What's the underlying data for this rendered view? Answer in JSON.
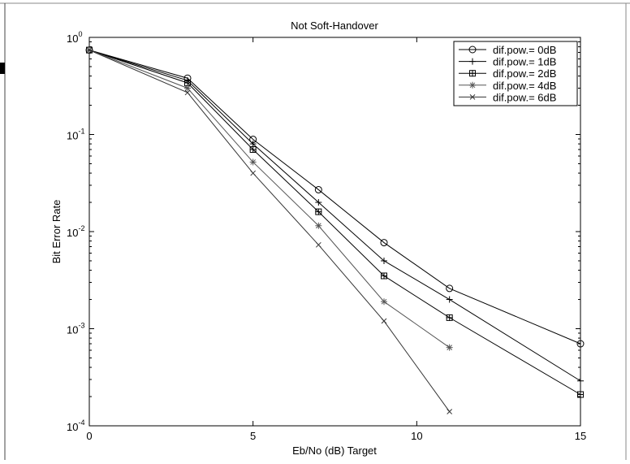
{
  "chart_data": {
    "type": "line",
    "title": "Not Soft-Handover",
    "xlabel": "Eb/No (dB) Target",
    "ylabel": "Bit Error Rate",
    "xlim": [
      0,
      15
    ],
    "ylim": [
      0.0001,
      1
    ],
    "yscale": "log",
    "grid": false,
    "legend_position": "top-right",
    "x_ticks": [
      0,
      5,
      10,
      15
    ],
    "y_ticks": [
      {
        "value": 1,
        "base": "10",
        "exp": "0"
      },
      {
        "value": 0.1,
        "base": "10",
        "exp": "-1"
      },
      {
        "value": 0.01,
        "base": "10",
        "exp": "-2"
      },
      {
        "value": 0.001,
        "base": "10",
        "exp": "-3"
      },
      {
        "value": 0.0001,
        "base": "10",
        "exp": "-4"
      }
    ],
    "series": [
      {
        "name": "dif.pow.= 0dB",
        "marker": "circle",
        "color": "#000000",
        "x": [
          0,
          3,
          5,
          7,
          9,
          11,
          15
        ],
        "y": [
          0.74,
          0.38,
          0.089,
          0.027,
          0.0077,
          0.0026,
          0.0007
        ]
      },
      {
        "name": "dif.pow.= 1dB",
        "marker": "plus",
        "color": "#000000",
        "x": [
          0,
          3,
          5,
          7,
          9,
          11,
          15
        ],
        "y": [
          0.74,
          0.36,
          0.08,
          0.02,
          0.005,
          0.002,
          0.00029
        ]
      },
      {
        "name": "dif.pow.= 2dB",
        "marker": "square-star",
        "color": "#000000",
        "x": [
          0,
          3,
          5,
          7,
          9,
          11,
          15
        ],
        "y": [
          0.74,
          0.34,
          0.07,
          0.016,
          0.0035,
          0.0013,
          0.00021
        ]
      },
      {
        "name": "dif.pow.= 4dB",
        "marker": "star",
        "color": "#555555",
        "x": [
          0,
          3,
          5,
          7,
          9,
          11
        ],
        "y": [
          0.74,
          0.3,
          0.052,
          0.0115,
          0.0019,
          0.00064
        ]
      },
      {
        "name": "dif.pow.= 6dB",
        "marker": "x",
        "color": "#333333",
        "x": [
          0,
          3,
          5,
          7,
          9,
          11
        ],
        "y": [
          0.74,
          0.27,
          0.04,
          0.0073,
          0.0012,
          0.00014
        ]
      }
    ]
  }
}
